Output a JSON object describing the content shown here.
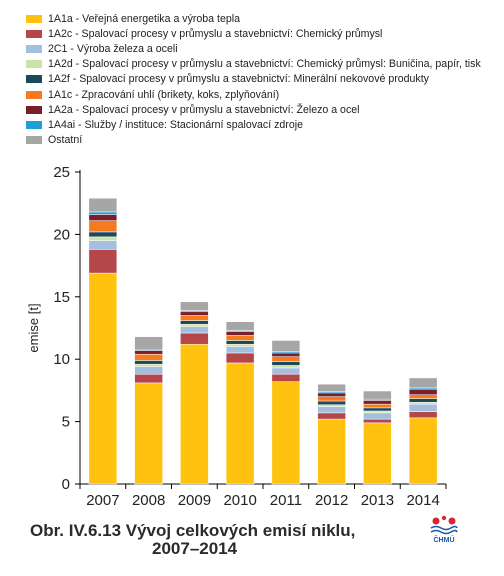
{
  "chart_data": {
    "type": "bar",
    "stacked": true,
    "ylabel": "emise [t]",
    "xlabel": "",
    "ylim": [
      0,
      25
    ],
    "yticks": [
      0,
      5,
      10,
      15,
      20,
      25
    ],
    "categories": [
      "2007",
      "2008",
      "2009",
      "2010",
      "2011",
      "2012",
      "2013",
      "2014"
    ],
    "legend_position": "top",
    "series": [
      {
        "name": "1A1a - Veřejná energetika a výroba tepla",
        "color": "#ffc20e",
        "values": [
          16.9,
          8.1,
          11.2,
          9.7,
          8.2,
          5.2,
          4.9,
          5.3
        ]
      },
      {
        "name": "1A2c - Spalovací procesy v průmyslu a stavebnictví: Chemický průmysl",
        "color": "#b5474b",
        "values": [
          1.9,
          0.7,
          0.9,
          0.8,
          0.6,
          0.5,
          0.3,
          0.5
        ]
      },
      {
        "name": "2C1 - Výroba železa a oceli",
        "color": "#a3bfe0",
        "values": [
          0.7,
          0.6,
          0.5,
          0.5,
          0.5,
          0.5,
          0.5,
          0.6
        ]
      },
      {
        "name": "1A2d - Spalovací procesy v průmyslu a stavebnictví: Chemický průmysl: Buničina, papír, tisk",
        "color": "#cfe0a8",
        "values": [
          0.3,
          0.2,
          0.2,
          0.2,
          0.2,
          0.15,
          0.15,
          0.15
        ]
      },
      {
        "name": "1A2f - Spalovací procesy v průmyslu a stavebnictví: Minerální nekovové produkty",
        "color": "#1d4a5a",
        "values": [
          0.4,
          0.3,
          0.3,
          0.3,
          0.3,
          0.3,
          0.25,
          0.3
        ]
      },
      {
        "name": "1A1c - Zpracování uhlí (brikety, koks, zplyňování)",
        "color": "#f47b20",
        "values": [
          0.9,
          0.5,
          0.4,
          0.4,
          0.4,
          0.35,
          0.3,
          0.3
        ]
      },
      {
        "name": "1A2a - Spalovací procesy v průmyslu a stavebnictví: Železo a ocel",
        "color": "#7a1e2a",
        "values": [
          0.5,
          0.3,
          0.3,
          0.3,
          0.3,
          0.3,
          0.3,
          0.45
        ]
      },
      {
        "name": "1A4ai - Služby / instituce: Stacionární spalovací zdroje",
        "color": "#1e9ed6",
        "values": [
          0.2,
          0.1,
          0.1,
          0.1,
          0.1,
          0.1,
          0.1,
          0.1
        ]
      },
      {
        "name": "Ostatní",
        "color": "#a6a6a6",
        "values": [
          1.1,
          1.0,
          0.7,
          0.7,
          0.9,
          0.6,
          0.65,
          0.8
        ]
      }
    ]
  },
  "caption": {
    "line1": "Obr. IV.6.13  Vývoj celkových emisí niklu,",
    "line2": "2007–2014"
  },
  "logo": {
    "text": "ČHMÚ",
    "colors": [
      "#d7282f",
      "#1a5aa6"
    ]
  }
}
